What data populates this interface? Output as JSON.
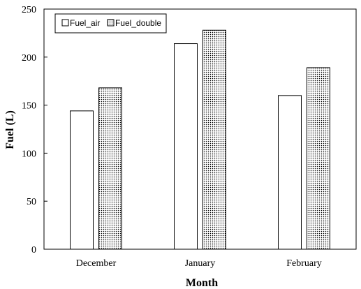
{
  "chart_data": {
    "type": "bar",
    "categories": [
      "December",
      "January",
      "February"
    ],
    "series": [
      {
        "name": "Fuel_air",
        "values": [
          144,
          214,
          160
        ],
        "fill": "#ffffff",
        "pattern": "none"
      },
      {
        "name": "Fuel_double",
        "values": [
          168,
          228,
          189
        ],
        "fill": "#ffffff",
        "pattern": "dots"
      }
    ],
    "xlabel": "Month",
    "ylabel": "Fuel (L)",
    "ylim": [
      0,
      250
    ],
    "yticks": [
      0,
      50,
      100,
      150,
      200,
      250
    ],
    "grid": false,
    "legend_position": "top-left",
    "colors": {
      "outline": "#000000",
      "dots": "#000000",
      "background": "#ffffff"
    }
  }
}
